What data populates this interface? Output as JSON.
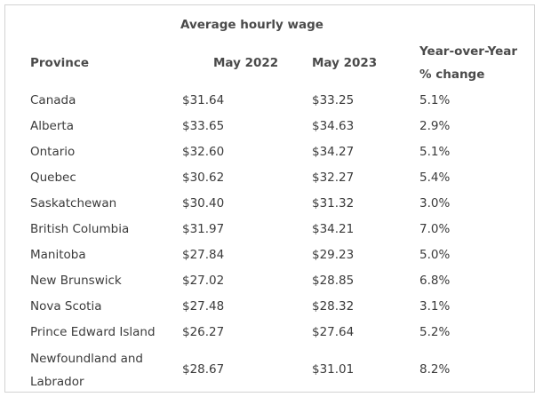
{
  "table": {
    "group_header": "Average hourly wage",
    "headers": {
      "province": "Province",
      "may2022": "May 2022",
      "may2023": "May 2023",
      "yoy_line1": "Year-over-Year",
      "yoy_line2": "% change"
    },
    "rows": [
      {
        "province": "Canada",
        "may2022": "$31.64",
        "may2023": "$33.25",
        "yoy": "5.1%"
      },
      {
        "province": "Alberta",
        "may2022": "$33.65",
        "may2023": "$34.63",
        "yoy": "2.9%"
      },
      {
        "province": "Ontario",
        "may2022": "$32.60",
        "may2023": "$34.27",
        "yoy": "5.1%"
      },
      {
        "province": "Quebec",
        "may2022": "$30.62",
        "may2023": "$32.27",
        "yoy": "5.4%"
      },
      {
        "province": "Saskatchewan",
        "may2022": "$30.40",
        "may2023": "$31.32",
        "yoy": "3.0%"
      },
      {
        "province": "British Columbia",
        "may2022": "$31.97",
        "may2023": "$34.21",
        "yoy": "7.0%"
      },
      {
        "province": "Manitoba",
        "may2022": "$27.84",
        "may2023": "$29.23",
        "yoy": "5.0%"
      },
      {
        "province": "New Brunswick",
        "may2022": "$27.02",
        "may2023": "$28.85",
        "yoy": "6.8%"
      },
      {
        "province": "Nova Scotia",
        "may2022": "$27.48",
        "may2023": "$28.32",
        "yoy": "3.1%"
      },
      {
        "province": "Prince Edward Island",
        "may2022": "$26.27",
        "may2023": "$27.64",
        "yoy": "5.2%"
      }
    ],
    "last_row": {
      "province_line1": "Newfoundland and",
      "province_line2": "Labrador",
      "may2022": "$28.67",
      "may2023": "$31.01",
      "yoy": "8.2%"
    }
  }
}
